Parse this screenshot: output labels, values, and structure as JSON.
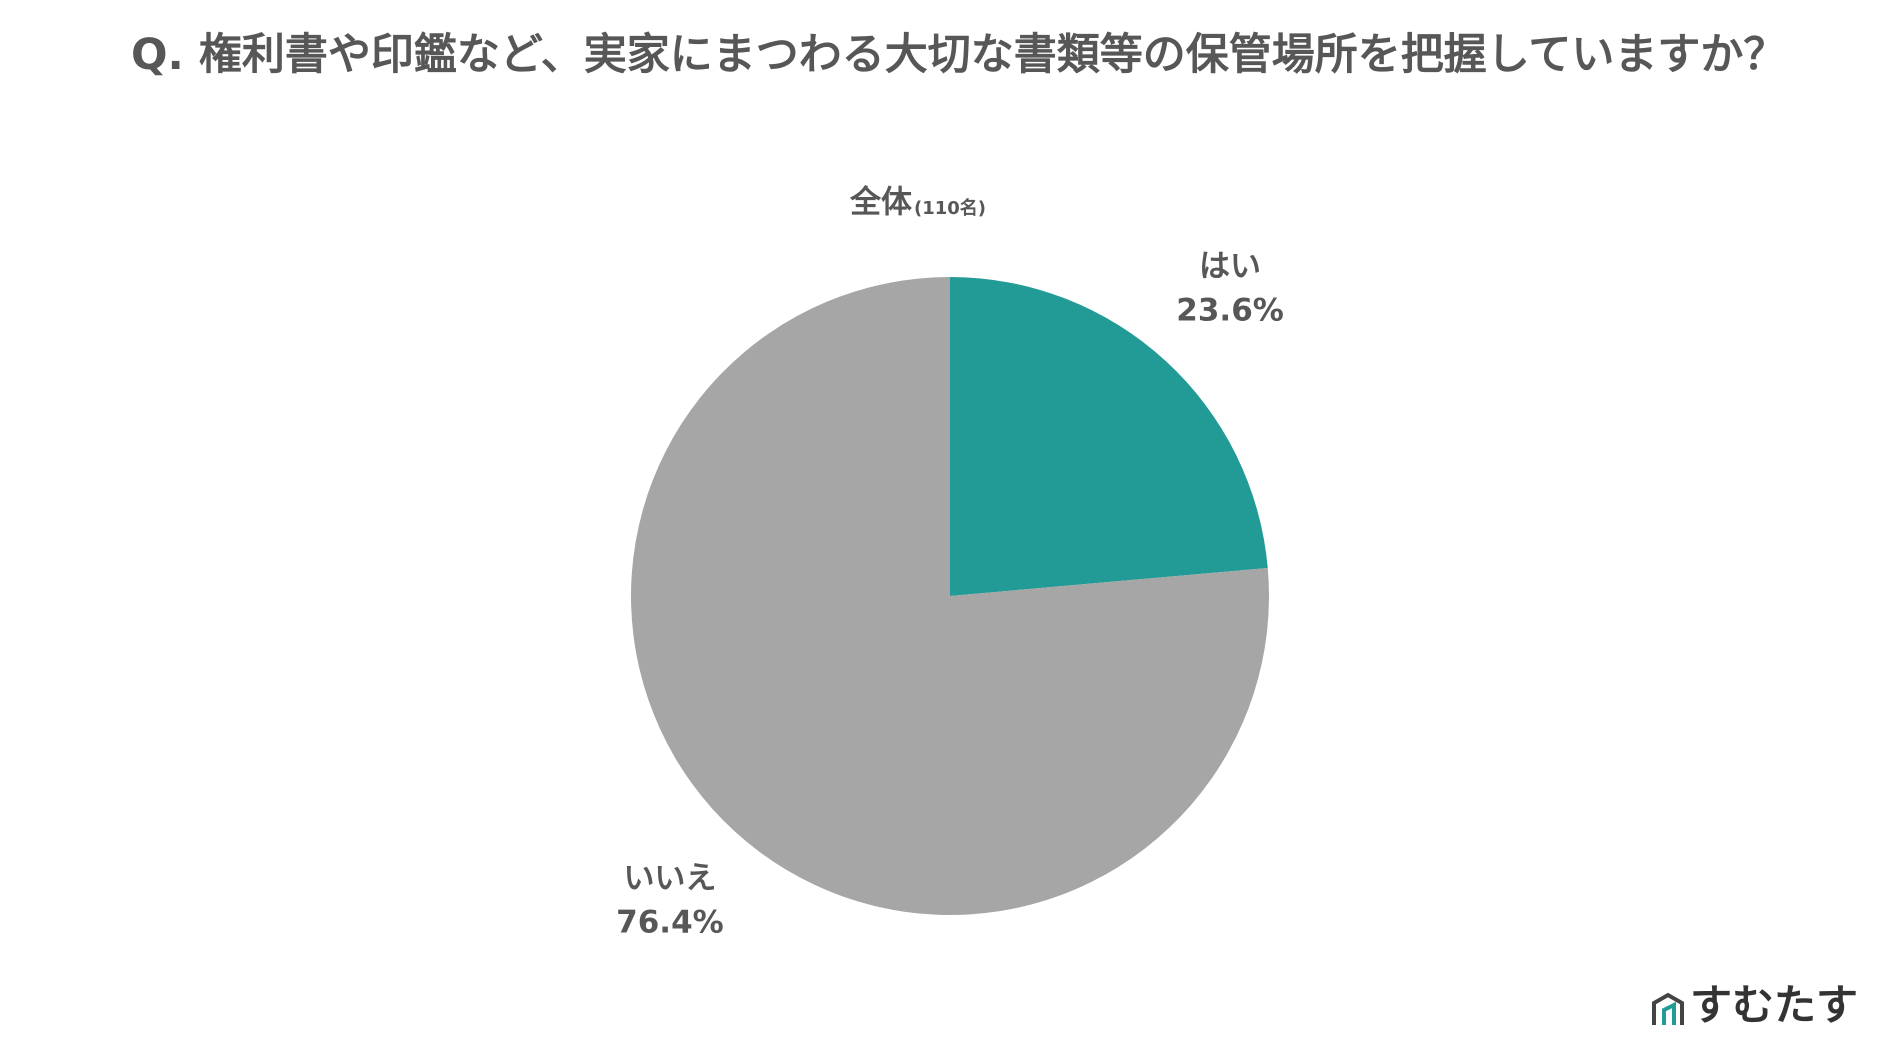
{
  "chart_data": {
    "type": "pie",
    "title": "Q. 権利書や印鑑など、実家にまつわる大切な書類等の保管場所を把握していますか？",
    "subtitle": "全体",
    "sample_note": "(110名)",
    "categories": [
      "はい",
      "いいえ"
    ],
    "values": [
      23.6,
      76.4
    ],
    "value_labels": [
      "23.6%",
      "76.4%"
    ],
    "colors": [
      "#229b96",
      "#a6a6a6"
    ]
  },
  "logo": "すむたす"
}
